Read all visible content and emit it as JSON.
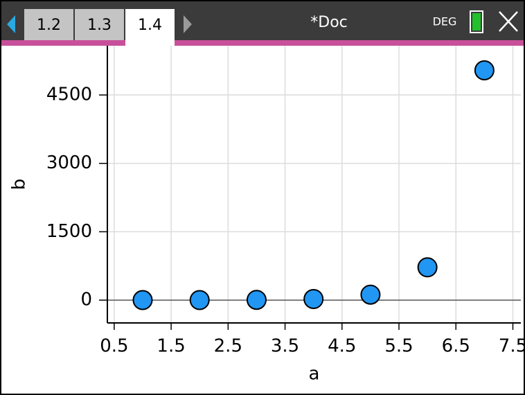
{
  "ui": {
    "tabs": [
      "1.2",
      "1.3",
      "1.4"
    ],
    "active_tab": 2,
    "document": "*Doc",
    "mode": "DEG"
  },
  "chart_data": {
    "type": "scatter",
    "x_label": "a",
    "y_label": "b",
    "x": [
      1,
      2,
      3,
      4,
      5,
      6,
      7
    ],
    "values": [
      1,
      2,
      6,
      24,
      120,
      720,
      5040
    ],
    "color": "#2196f3",
    "xlim": [
      0.38,
      7.64
    ],
    "ylim": [
      -500,
      5580
    ],
    "xticks": [
      0.5,
      1.5,
      2.5,
      3.5,
      4.5,
      5.5,
      6.5,
      7.5
    ],
    "yticks": [
      0,
      1500,
      3000,
      4500
    ],
    "grid": true
  }
}
